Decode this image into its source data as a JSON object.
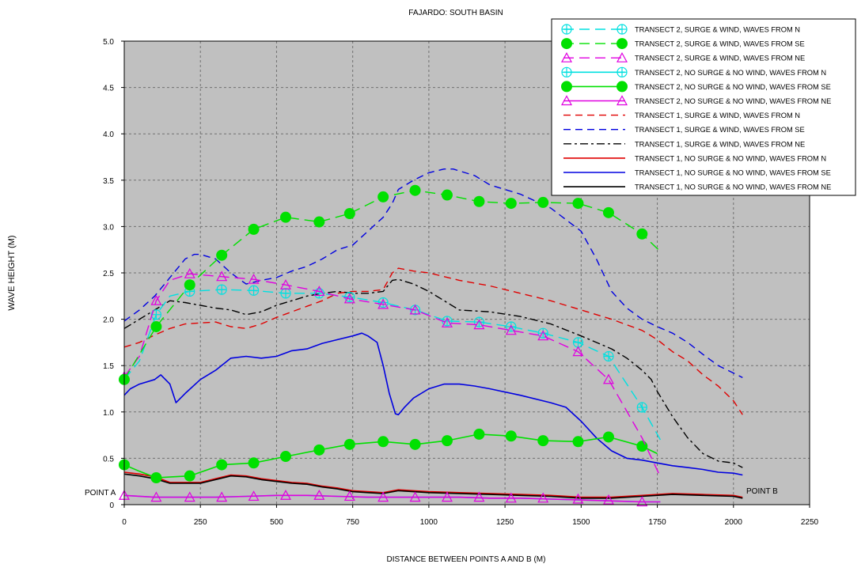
{
  "chart_data": {
    "type": "line",
    "title": "FAJARDO: SOUTH BASIN",
    "xlabel": "DISTANCE BETWEEN POINTS A AND B (M)",
    "ylabel": "WAVE HEIGHT (M)",
    "xlim": [
      0,
      2250
    ],
    "ylim": [
      0,
      5
    ],
    "xticks": [
      "0",
      "250",
      "500",
      "750",
      "1000",
      "1250",
      "1500",
      "1750",
      "2000",
      "2250"
    ],
    "yticks": [
      "0",
      "0.5",
      "1.0",
      "1.5",
      "2.0",
      "2.5",
      "3.0",
      "3.5",
      "4.0",
      "4.5",
      "5.0"
    ],
    "grid": true,
    "legend_position": "top-right",
    "plot_background": "#c0c0c0",
    "annotations": [
      {
        "text": "POINT A",
        "x": 0,
        "y": 0.1
      },
      {
        "text": "POINT B",
        "x": 2040,
        "y": 0.1
      }
    ],
    "series": [
      {
        "name": "TRANSECT 2, SURGE & WIND, WAVES FROM N",
        "color": "#00e0e0",
        "dash": "longdash",
        "marker": "circle-cross",
        "x": [
          0,
          50,
          105,
          150,
          215,
          320,
          425,
          530,
          640,
          740,
          850,
          955,
          1060,
          1165,
          1270,
          1375,
          1490,
          1590,
          1700,
          1760
        ],
        "y": [
          1.35,
          1.55,
          2.05,
          2.25,
          2.3,
          2.32,
          2.31,
          2.28,
          2.28,
          2.24,
          2.18,
          2.1,
          1.98,
          1.97,
          1.92,
          1.85,
          1.75,
          1.6,
          1.05,
          0.7
        ],
        "marker_x": [
          0,
          105,
          215,
          320,
          425,
          530,
          640,
          740,
          850,
          955,
          1060,
          1165,
          1270,
          1375,
          1490,
          1590,
          1700
        ],
        "marker_y": [
          1.35,
          2.05,
          2.3,
          2.32,
          2.31,
          2.28,
          2.28,
          2.24,
          2.18,
          2.1,
          1.98,
          1.97,
          1.92,
          1.85,
          1.75,
          1.6,
          1.05
        ]
      },
      {
        "name": "TRANSECT 2, SURGE & WIND, WAVES FROM SE",
        "color": "#00e000",
        "dash": "longdash",
        "marker": "filled-circle",
        "x": [
          0,
          105,
          215,
          320,
          425,
          530,
          640,
          740,
          850,
          955,
          1060,
          1165,
          1270,
          1375,
          1490,
          1590,
          1700,
          1760
        ],
        "y": [
          1.35,
          1.92,
          2.37,
          2.69,
          2.97,
          3.1,
          3.05,
          3.14,
          3.32,
          3.39,
          3.34,
          3.27,
          3.25,
          3.26,
          3.25,
          3.15,
          2.92,
          2.73
        ],
        "marker_x": [
          0,
          105,
          215,
          320,
          425,
          530,
          640,
          740,
          850,
          955,
          1060,
          1165,
          1270,
          1375,
          1490,
          1590,
          1700
        ],
        "marker_y": [
          1.35,
          1.92,
          2.37,
          2.69,
          2.97,
          3.1,
          3.05,
          3.14,
          3.32,
          3.39,
          3.34,
          3.27,
          3.25,
          3.26,
          3.25,
          3.15,
          2.92
        ]
      },
      {
        "name": "TRANSECT 2, SURGE & WIND, WAVES FROM NE",
        "color": "#e000e0",
        "dash": "longdash",
        "marker": "triangle",
        "x": [
          0,
          50,
          105,
          150,
          215,
          320,
          425,
          530,
          640,
          740,
          850,
          955,
          1060,
          1165,
          1270,
          1375,
          1490,
          1590,
          1700,
          1760
        ],
        "y": [
          1.38,
          1.6,
          2.2,
          2.42,
          2.49,
          2.46,
          2.43,
          2.37,
          2.3,
          2.22,
          2.16,
          2.1,
          1.96,
          1.94,
          1.88,
          1.82,
          1.65,
          1.35,
          0.72,
          0.3
        ],
        "marker_x": [
          0,
          105,
          215,
          320,
          425,
          530,
          640,
          740,
          850,
          955,
          1060,
          1165,
          1270,
          1375,
          1490,
          1590
        ],
        "marker_y": [
          1.38,
          2.2,
          2.49,
          2.46,
          2.43,
          2.37,
          2.3,
          2.22,
          2.16,
          2.1,
          1.96,
          1.94,
          1.88,
          1.82,
          1.65,
          1.35
        ]
      },
      {
        "name": "TRANSECT 2, NO SURGE & NO WIND, WAVES FROM N",
        "color": "#00e0e0",
        "dash": "solid",
        "marker": "circle-cross",
        "x": [
          0,
          100,
          200,
          300,
          400,
          500,
          600,
          700,
          800,
          900,
          1000,
          1100,
          1200,
          1300,
          1400,
          1500,
          1600,
          1700,
          1760
        ],
        "y": [
          0.1,
          0.08,
          0.08,
          0.08,
          0.09,
          0.1,
          0.1,
          0.09,
          0.08,
          0.08,
          0.08,
          0.08,
          0.07,
          0.07,
          0.06,
          0.05,
          0.04,
          0.03,
          0.03
        ],
        "marker_x": [],
        "marker_y": []
      },
      {
        "name": "TRANSECT 2, NO SURGE & NO WIND, WAVES FROM SE",
        "color": "#00e000",
        "dash": "solid",
        "marker": "filled-circle",
        "x": [
          0,
          50,
          105,
          160,
          215,
          320,
          425,
          530,
          640,
          740,
          850,
          955,
          1060,
          1165,
          1270,
          1375,
          1490,
          1590,
          1700,
          1750
        ],
        "y": [
          0.43,
          0.36,
          0.29,
          0.3,
          0.31,
          0.43,
          0.45,
          0.52,
          0.59,
          0.65,
          0.68,
          0.65,
          0.69,
          0.76,
          0.74,
          0.69,
          0.68,
          0.73,
          0.63,
          0.55
        ],
        "marker_x": [
          0,
          105,
          215,
          320,
          425,
          530,
          640,
          740,
          850,
          955,
          1060,
          1165,
          1270,
          1375,
          1490,
          1590,
          1700
        ],
        "marker_y": [
          0.43,
          0.29,
          0.31,
          0.43,
          0.45,
          0.52,
          0.59,
          0.65,
          0.68,
          0.65,
          0.69,
          0.76,
          0.74,
          0.69,
          0.68,
          0.73,
          0.63
        ]
      },
      {
        "name": "TRANSECT 2, NO SURGE & NO WIND, WAVES FROM NE",
        "color": "#e000e0",
        "dash": "solid",
        "marker": "triangle",
        "x": [
          0,
          100,
          200,
          300,
          400,
          500,
          600,
          700,
          800,
          900,
          1000,
          1100,
          1200,
          1300,
          1400,
          1500,
          1600,
          1700,
          1760
        ],
        "y": [
          0.1,
          0.08,
          0.08,
          0.08,
          0.09,
          0.1,
          0.1,
          0.09,
          0.08,
          0.08,
          0.08,
          0.08,
          0.07,
          0.07,
          0.06,
          0.05,
          0.04,
          0.03,
          0.03
        ],
        "marker_x": [
          0,
          105,
          215,
          320,
          425,
          530,
          640,
          740,
          850,
          955,
          1060,
          1165,
          1270,
          1375,
          1490,
          1590,
          1700
        ],
        "marker_y": [
          0.1,
          0.08,
          0.08,
          0.08,
          0.09,
          0.1,
          0.1,
          0.09,
          0.08,
          0.08,
          0.08,
          0.08,
          0.07,
          0.07,
          0.06,
          0.05,
          0.03
        ]
      },
      {
        "name": "TRANSECT 1, SURGE & WIND, WAVES FROM N",
        "color": "#e00000",
        "dash": "dash",
        "marker": "none",
        "x": [
          0,
          50,
          100,
          150,
          200,
          250,
          300,
          350,
          400,
          450,
          500,
          550,
          600,
          650,
          700,
          750,
          800,
          850,
          880,
          900,
          950,
          1000,
          1100,
          1200,
          1300,
          1400,
          1500,
          1600,
          1700,
          1750,
          1800,
          1850,
          1900,
          1950,
          2000,
          2030
        ],
        "y": [
          1.7,
          1.75,
          1.83,
          1.9,
          1.95,
          1.96,
          1.97,
          1.92,
          1.9,
          1.95,
          2.02,
          2.08,
          2.14,
          2.2,
          2.28,
          2.3,
          2.3,
          2.32,
          2.5,
          2.55,
          2.52,
          2.5,
          2.42,
          2.36,
          2.28,
          2.2,
          2.1,
          2.0,
          1.88,
          1.78,
          1.65,
          1.55,
          1.4,
          1.28,
          1.12,
          0.97
        ]
      },
      {
        "name": "TRANSECT 1, SURGE & WIND, WAVES FROM SE",
        "color": "#0000e0",
        "dash": "dash",
        "marker": "none",
        "x": [
          0,
          50,
          100,
          150,
          200,
          230,
          250,
          300,
          350,
          400,
          450,
          500,
          550,
          600,
          650,
          700,
          750,
          800,
          850,
          880,
          900,
          950,
          1000,
          1050,
          1080,
          1100,
          1150,
          1200,
          1300,
          1400,
          1500,
          1550,
          1600,
          1650,
          1700,
          1750,
          1800,
          1850,
          1900,
          1950,
          2000,
          2030
        ],
        "y": [
          1.98,
          2.1,
          2.25,
          2.45,
          2.65,
          2.7,
          2.7,
          2.65,
          2.5,
          2.38,
          2.42,
          2.45,
          2.52,
          2.57,
          2.65,
          2.75,
          2.8,
          2.95,
          3.1,
          3.25,
          3.4,
          3.5,
          3.58,
          3.62,
          3.62,
          3.6,
          3.55,
          3.45,
          3.35,
          3.2,
          2.95,
          2.65,
          2.3,
          2.12,
          2.0,
          1.92,
          1.85,
          1.75,
          1.62,
          1.5,
          1.42,
          1.37
        ]
      },
      {
        "name": "TRANSECT 1, SURGE & WIND, WAVES FROM NE",
        "color": "#000000",
        "dash": "dashdot",
        "marker": "none",
        "x": [
          0,
          50,
          100,
          150,
          200,
          250,
          300,
          350,
          400,
          450,
          500,
          550,
          600,
          650,
          700,
          750,
          800,
          850,
          880,
          900,
          950,
          1000,
          1100,
          1200,
          1300,
          1400,
          1500,
          1600,
          1650,
          1700,
          1730,
          1750,
          1800,
          1850,
          1900,
          1950,
          2000,
          2030
        ],
        "y": [
          1.9,
          2.0,
          2.1,
          2.2,
          2.18,
          2.15,
          2.12,
          2.1,
          2.05,
          2.08,
          2.15,
          2.2,
          2.25,
          2.28,
          2.3,
          2.28,
          2.28,
          2.3,
          2.42,
          2.43,
          2.38,
          2.3,
          2.1,
          2.08,
          2.03,
          1.95,
          1.82,
          1.68,
          1.58,
          1.45,
          1.35,
          1.22,
          0.95,
          0.72,
          0.55,
          0.47,
          0.45,
          0.4
        ]
      },
      {
        "name": "TRANSECT 1, NO SURGE & NO WIND, WAVES FROM N",
        "color": "#e00000",
        "dash": "solid",
        "marker": "none",
        "x": [
          0,
          50,
          100,
          150,
          200,
          250,
          300,
          350,
          400,
          450,
          500,
          550,
          600,
          650,
          700,
          750,
          800,
          850,
          900,
          950,
          1000,
          1100,
          1200,
          1300,
          1400,
          1500,
          1600,
          1700,
          1800,
          1900,
          2000,
          2030
        ],
        "y": [
          0.35,
          0.33,
          0.3,
          0.24,
          0.24,
          0.24,
          0.28,
          0.32,
          0.31,
          0.28,
          0.26,
          0.24,
          0.23,
          0.2,
          0.18,
          0.15,
          0.14,
          0.13,
          0.16,
          0.15,
          0.14,
          0.13,
          0.12,
          0.11,
          0.1,
          0.08,
          0.08,
          0.1,
          0.12,
          0.11,
          0.1,
          0.08
        ]
      },
      {
        "name": "TRANSECT 1, NO SURGE & NO WIND, WAVES FROM SE",
        "color": "#0000e0",
        "dash": "solid",
        "marker": "none",
        "x": [
          0,
          20,
          50,
          100,
          120,
          150,
          170,
          200,
          250,
          300,
          350,
          400,
          450,
          500,
          550,
          600,
          650,
          700,
          750,
          780,
          800,
          830,
          850,
          870,
          890,
          900,
          920,
          950,
          1000,
          1050,
          1100,
          1150,
          1200,
          1300,
          1400,
          1450,
          1500,
          1550,
          1600,
          1650,
          1700,
          1750,
          1800,
          1850,
          1900,
          1950,
          2000,
          2030
        ],
        "y": [
          1.18,
          1.25,
          1.3,
          1.35,
          1.4,
          1.3,
          1.1,
          1.2,
          1.35,
          1.45,
          1.58,
          1.6,
          1.58,
          1.6,
          1.66,
          1.68,
          1.74,
          1.78,
          1.82,
          1.85,
          1.82,
          1.75,
          1.5,
          1.2,
          0.98,
          0.97,
          1.05,
          1.15,
          1.25,
          1.3,
          1.3,
          1.28,
          1.25,
          1.18,
          1.1,
          1.05,
          0.9,
          0.72,
          0.58,
          0.5,
          0.48,
          0.45,
          0.42,
          0.4,
          0.38,
          0.35,
          0.34,
          0.32
        ]
      },
      {
        "name": "TRANSECT 1, NO SURGE & NO WIND, WAVES FROM NE",
        "color": "#000000",
        "dash": "solid",
        "marker": "none",
        "x": [
          0,
          50,
          100,
          150,
          200,
          250,
          300,
          350,
          400,
          450,
          500,
          550,
          600,
          650,
          700,
          750,
          800,
          850,
          900,
          950,
          1000,
          1100,
          1200,
          1300,
          1400,
          1500,
          1600,
          1700,
          1800,
          1900,
          2000,
          2030
        ],
        "y": [
          0.33,
          0.31,
          0.28,
          0.23,
          0.23,
          0.23,
          0.27,
          0.31,
          0.3,
          0.27,
          0.25,
          0.23,
          0.22,
          0.19,
          0.17,
          0.14,
          0.13,
          0.12,
          0.15,
          0.14,
          0.13,
          0.12,
          0.11,
          0.1,
          0.09,
          0.07,
          0.07,
          0.09,
          0.11,
          0.1,
          0.09,
          0.07
        ]
      }
    ]
  }
}
